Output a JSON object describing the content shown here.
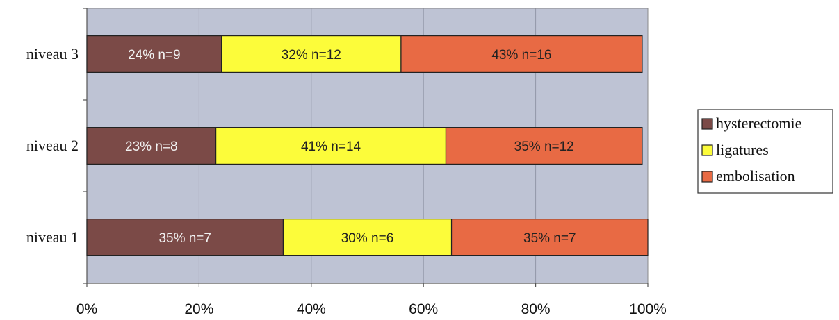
{
  "chart_data": {
    "type": "bar",
    "orientation": "horizontal",
    "stacked": "percent",
    "categories": [
      "niveau 1",
      "niveau 2",
      "niveau 3"
    ],
    "series": [
      {
        "name": "hysterectomie",
        "color": "#7b4a47",
        "values": [
          35,
          23,
          24
        ],
        "labels": [
          "35% n=7",
          "23% n=8",
          "24% n=9"
        ]
      },
      {
        "name": "ligatures",
        "color": "#fcfc3a",
        "values": [
          30,
          41,
          32
        ],
        "labels": [
          "30% n=6",
          "41% n=14",
          "32% n=12"
        ]
      },
      {
        "name": "embolisation",
        "color": "#e86a44",
        "values": [
          35,
          35,
          43
        ],
        "labels": [
          "35% n=7",
          "35% n=12",
          "43% n=16"
        ]
      }
    ],
    "xlim": [
      0,
      100
    ],
    "xticks": [
      "0%",
      "20%",
      "40%",
      "60%",
      "80%",
      "100%"
    ],
    "grid": true,
    "plot_background": "#bec3d4",
    "legend_position": "right"
  }
}
